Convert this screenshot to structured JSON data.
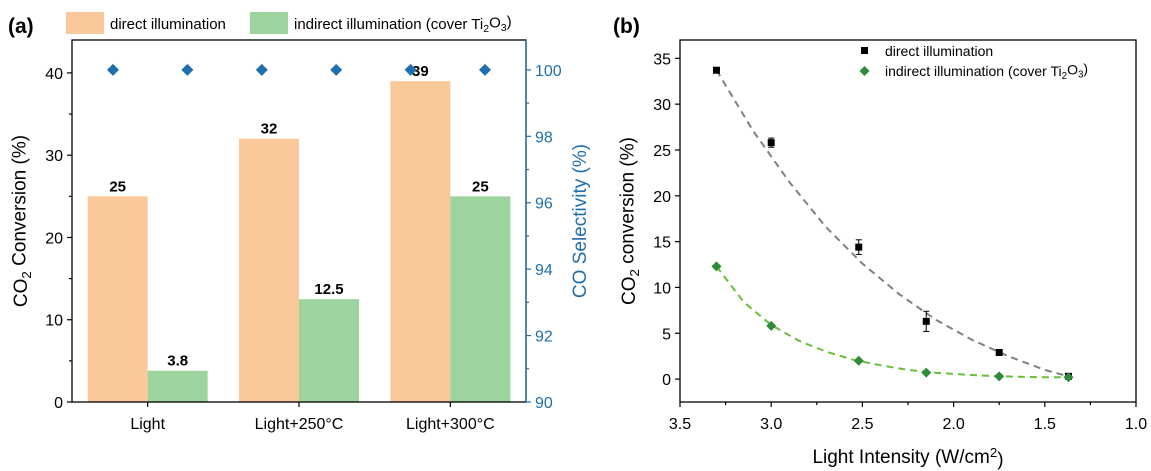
{
  "chart_data": [
    {
      "panel_label": "(a)",
      "type": "bar",
      "categories": [
        "Light",
        "Light+250°C",
        "Light+300°C"
      ],
      "series": [
        {
          "name": "direct illumination",
          "values": [
            25,
            32,
            39
          ],
          "value_labels": [
            "25",
            "32",
            "39"
          ],
          "color": "#f9c89b"
        },
        {
          "name": "indirect illumination (cover Ti2O3)",
          "name_parts": [
            "indirect illumination (cover Ti",
            "2",
            "O",
            "3",
            ")"
          ],
          "values": [
            3.8,
            12.5,
            25
          ],
          "value_labels": [
            "3.8",
            "12.5",
            "25"
          ],
          "color": "#9dd39d"
        }
      ],
      "selectivity": {
        "values": [
          100,
          100,
          100,
          100,
          100,
          100
        ],
        "color": "#1f6fad",
        "marker": "diamond"
      },
      "ylabel_parts": [
        "CO",
        "2",
        " Conversion (%)"
      ],
      "y2label": "CO Selectivity (%)",
      "ylim": [
        0,
        44
      ],
      "yticks": [
        0,
        10,
        20,
        30,
        40
      ],
      "y2lim": [
        90,
        100.9
      ],
      "y2ticks": [
        90,
        92,
        94,
        96,
        98,
        100
      ],
      "legend_position": "top"
    },
    {
      "panel_label": "(b)",
      "type": "scatter",
      "series": [
        {
          "name": "direct illumination",
          "marker": "square",
          "color": "#000000",
          "x": [
            3.3,
            3.0,
            2.52,
            2.15,
            1.75,
            1.37
          ],
          "y": [
            33.7,
            25.8,
            14.4,
            6.3,
            2.9,
            0.3
          ],
          "yerr": [
            0.2,
            0.5,
            0.8,
            1.1,
            0.3,
            0.2
          ],
          "fit": {
            "style": "dashed",
            "color": "#808080",
            "x": [
              3.3,
              3.1,
              2.9,
              2.7,
              2.5,
              2.3,
              2.1,
              1.9,
              1.7,
              1.5,
              1.37
            ],
            "y": [
              33.7,
              27.1,
              21.5,
              16.6,
              12.6,
              9.3,
              6.5,
              4.3,
              2.5,
              1.0,
              0.3
            ]
          }
        },
        {
          "name": "indirect illumination (cover Ti2O3)",
          "name_parts": [
            "indirect illumination (cover Ti",
            "2",
            "O",
            "3",
            ")"
          ],
          "marker": "diamond",
          "color": "#2e8b3a",
          "x": [
            3.3,
            3.0,
            2.52,
            2.15,
            1.75,
            1.37
          ],
          "y": [
            12.3,
            5.8,
            2.0,
            0.7,
            0.3,
            0.2
          ],
          "fit": {
            "style": "dashed",
            "color": "#6abf3a",
            "x": [
              3.3,
              3.15,
              3.0,
              2.85,
              2.7,
              2.55,
              2.4,
              2.25,
              2.1,
              1.95,
              1.8,
              1.65,
              1.5,
              1.37
            ],
            "y": [
              12.3,
              8.4,
              5.9,
              4.2,
              3.0,
              2.1,
              1.5,
              1.0,
              0.7,
              0.5,
              0.35,
              0.25,
              0.2,
              0.2
            ]
          }
        }
      ],
      "xlabel_parts": [
        "Light Intensity (W/cm",
        "2",
        ")"
      ],
      "ylabel_parts": [
        "CO",
        "2",
        " conversion (%)"
      ],
      "xlim": [
        3.5,
        1.0
      ],
      "xticks": [
        3.5,
        3.0,
        2.5,
        2.0,
        1.5,
        1.0
      ],
      "xtick_labels": [
        "3.5",
        "3.0",
        "2.5",
        "2.0",
        "1.5",
        "1.0"
      ],
      "ylim": [
        -2.5,
        37
      ],
      "yticks": [
        0,
        5,
        10,
        15,
        20,
        25,
        30,
        35
      ],
      "legend_position": "top-right"
    }
  ]
}
